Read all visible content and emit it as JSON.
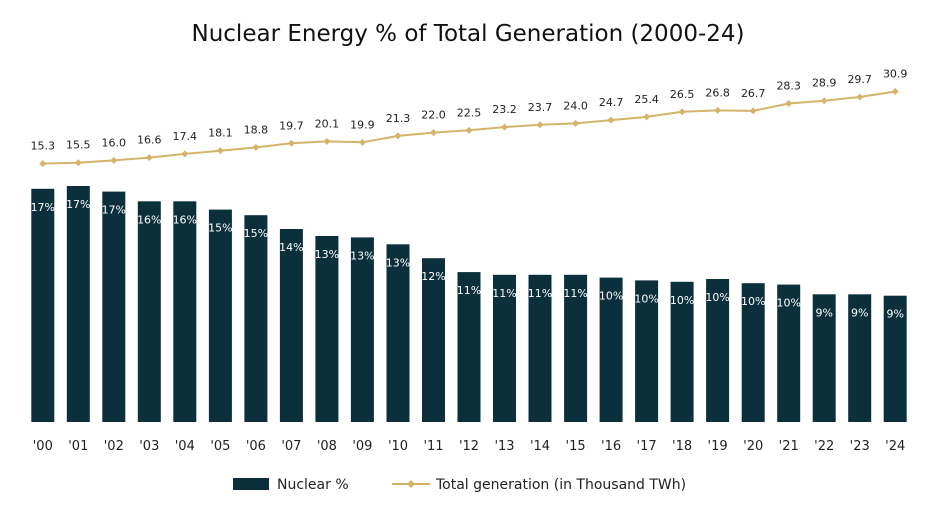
{
  "chart_data": {
    "type": "bar",
    "title": "Nuclear Energy % of Total Generation (2000-24)",
    "categories": [
      "'00",
      "'01",
      "'02",
      "'03",
      "'04",
      "'05",
      "'06",
      "'07",
      "'08",
      "'09",
      "'10",
      "'11",
      "'12",
      "'13",
      "'14",
      "'15",
      "'16",
      "'17",
      "'18",
      "'19",
      "'20",
      "'21",
      "'22",
      "'23",
      "'24"
    ],
    "series": [
      {
        "name": "Nuclear %",
        "type": "bar",
        "axis": "primary",
        "color": "#0b2f3b",
        "values": [
          16.8,
          17.0,
          16.6,
          15.9,
          15.9,
          15.3,
          14.9,
          13.9,
          13.4,
          13.3,
          12.8,
          11.8,
          10.8,
          10.6,
          10.6,
          10.6,
          10.4,
          10.2,
          10.1,
          10.3,
          10.0,
          9.9,
          9.2,
          9.2,
          9.1
        ],
        "labels": [
          "17%",
          "17%",
          "17%",
          "16%",
          "16%",
          "15%",
          "15%",
          "14%",
          "13%",
          "13%",
          "13%",
          "12%",
          "11%",
          "11%",
          "11%",
          "11%",
          "10%",
          "10%",
          "10%",
          "10%",
          "10%",
          "10%",
          "9%",
          "9%",
          "9%"
        ]
      },
      {
        "name": "Total generation (in Thousand TWh)",
        "type": "line",
        "axis": "secondary",
        "color": "#d4b46a",
        "marker": "diamond",
        "values": [
          15.3,
          15.5,
          16.0,
          16.6,
          17.4,
          18.1,
          18.8,
          19.7,
          20.1,
          19.9,
          21.3,
          22.0,
          22.5,
          23.2,
          23.7,
          24.0,
          24.7,
          25.4,
          26.5,
          26.8,
          26.7,
          28.3,
          28.9,
          29.7,
          30.9
        ],
        "labels": [
          "15.3",
          "15.5",
          "16.0",
          "16.6",
          "17.4",
          "18.1",
          "18.8",
          "19.7",
          "20.1",
          "19.9",
          "21.3",
          "22.0",
          "22.5",
          "23.2",
          "23.7",
          "24.0",
          "24.7",
          "25.4",
          "26.5",
          "26.8",
          "26.7",
          "28.3",
          "28.9",
          "29.7",
          "30.9"
        ]
      }
    ],
    "ylim": [
      0,
      17
    ],
    "y2lim": [
      15,
      31
    ],
    "grid": false,
    "legend": "bottom"
  }
}
